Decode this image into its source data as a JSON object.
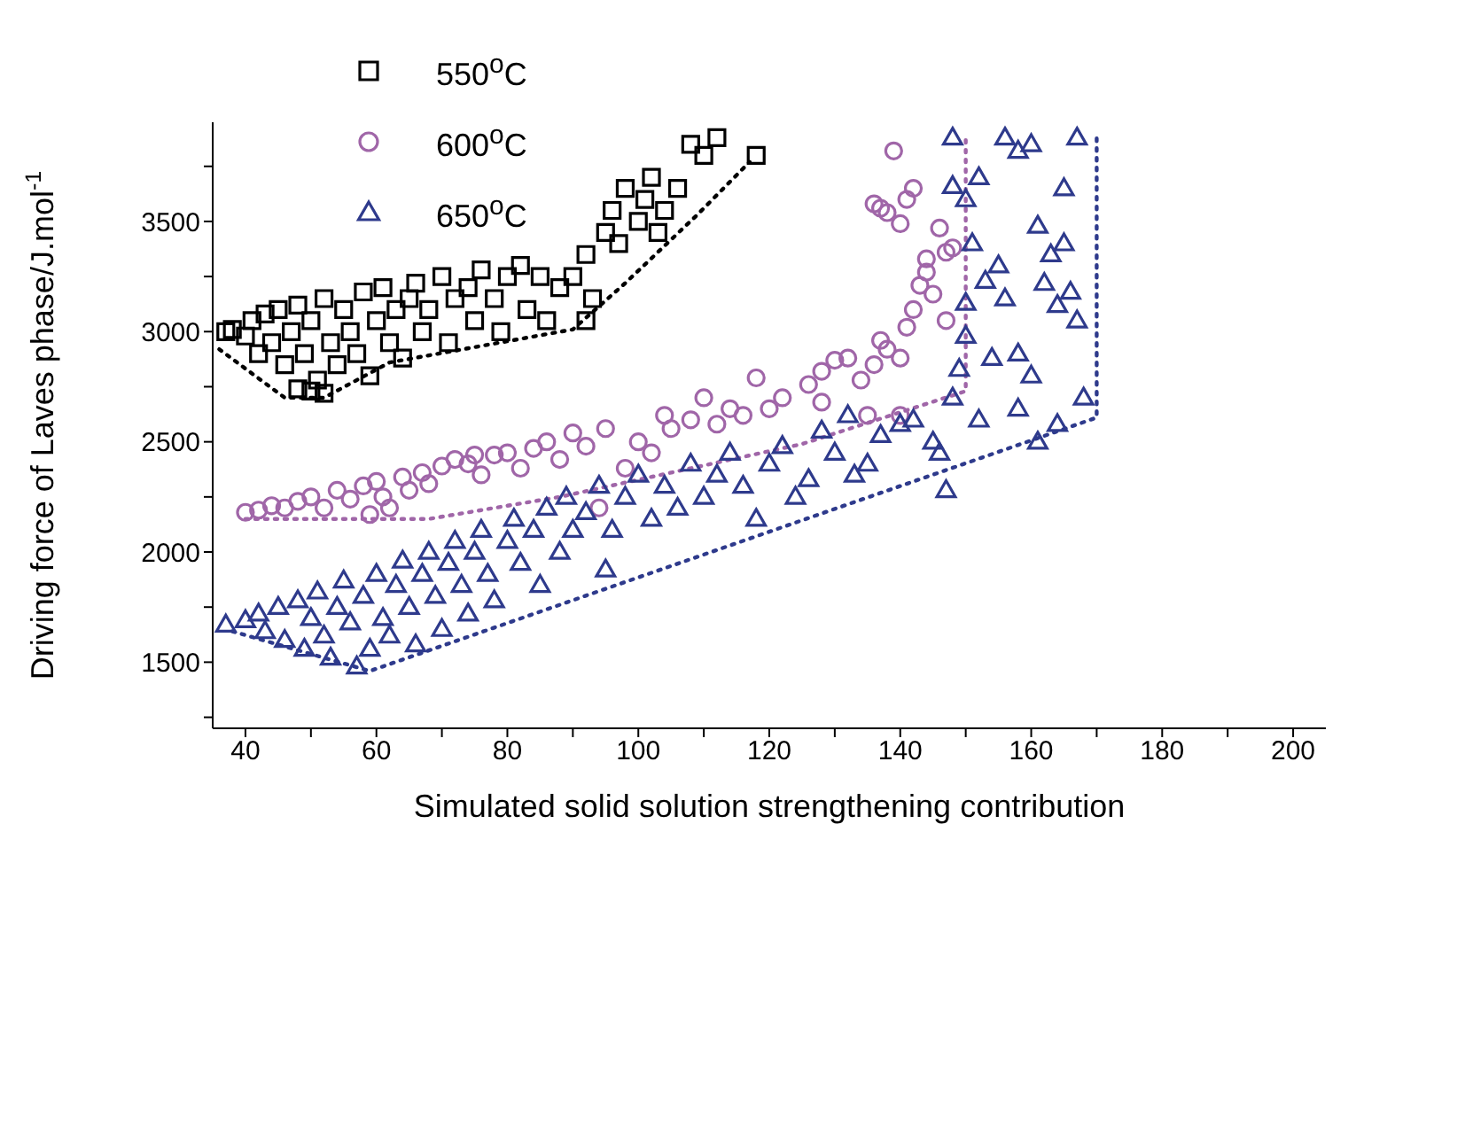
{
  "chart_data": {
    "type": "scatter",
    "xlabel": "Simulated solid solution strengthening contribution",
    "ylabel": "Driving force of Laves phase/J.mol$^{-1}$",
    "xlim": [
      35,
      205
    ],
    "xticks": [
      40,
      {
        "value": 50,
        "label": null
      },
      60,
      {
        "value": 70,
        "label": null
      },
      80,
      {
        "value": 90,
        "label": null
      },
      100,
      {
        "value": 110,
        "label": null
      },
      120,
      {
        "value": 130,
        "label": null
      },
      140,
      {
        "value": 150,
        "label": null
      },
      160,
      {
        "value": 170,
        "label": null
      },
      180,
      {
        "value": 190,
        "label": null
      },
      200
    ],
    "ylim": [
      1200,
      3950
    ],
    "yticks": [
      {
        "value": 1250,
        "label": null
      },
      1500,
      {
        "value": 1750,
        "label": null
      },
      2000,
      {
        "value": 2250,
        "label": null
      },
      2500,
      {
        "value": 2750,
        "label": null
      },
      3000,
      {
        "value": 3250,
        "label": null
      },
      3500,
      {
        "value": 3750,
        "label": null
      }
    ],
    "legend": "top left",
    "grid": false,
    "series": [
      {
        "name": "550$^{o}$C",
        "type": "scatter",
        "marker": "square",
        "color": "#000000",
        "x": [
          37,
          38,
          40,
          41,
          42,
          43,
          44,
          45,
          46,
          47,
          48,
          49,
          50,
          51,
          52,
          53,
          54,
          55,
          56,
          57,
          58,
          59,
          60,
          61,
          62,
          63,
          64,
          65,
          66,
          67,
          68,
          70,
          71,
          72,
          74,
          75,
          76,
          78,
          79,
          80,
          82,
          83,
          85,
          86,
          88,
          90,
          92,
          93,
          95,
          96,
          97,
          98,
          100,
          101,
          102,
          103,
          104,
          106,
          108,
          110,
          112,
          118,
          92,
          50,
          48,
          52
        ],
        "values": [
          3000,
          3010,
          2980,
          3050,
          2900,
          3080,
          2950,
          3100,
          2850,
          3000,
          3120,
          2900,
          3050,
          2780,
          3150,
          2950,
          2850,
          3100,
          3000,
          2900,
          3180,
          2800,
          3050,
          3200,
          2950,
          3100,
          2880,
          3150,
          3220,
          3000,
          3100,
          3250,
          2950,
          3150,
          3200,
          3050,
          3280,
          3150,
          3000,
          3250,
          3300,
          3100,
          3250,
          3050,
          3200,
          3250,
          3350,
          3150,
          3450,
          3550,
          3400,
          3650,
          3500,
          3600,
          3700,
          3450,
          3550,
          3650,
          3850,
          3800,
          3880,
          3800,
          3050,
          2730,
          2740,
          2720
        ]
      },
      {
        "name": "600$^{o}$C",
        "type": "scatter",
        "marker": "circle",
        "color": "#a066a8",
        "x": [
          40,
          42,
          44,
          46,
          48,
          50,
          52,
          54,
          56,
          58,
          59,
          60,
          61,
          62,
          64,
          65,
          67,
          68,
          70,
          72,
          74,
          75,
          76,
          78,
          80,
          82,
          84,
          86,
          88,
          90,
          92,
          94,
          95,
          98,
          100,
          102,
          104,
          105,
          108,
          110,
          112,
          114,
          116,
          118,
          120,
          122,
          126,
          128,
          130,
          132,
          134,
          136,
          137,
          138,
          140,
          141,
          142,
          143,
          144,
          145,
          146,
          147,
          136,
          137,
          138,
          140,
          141,
          142,
          139,
          144,
          148,
          147,
          140,
          135,
          128
        ],
        "values": [
          2180,
          2190,
          2210,
          2200,
          2230,
          2250,
          2200,
          2280,
          2240,
          2300,
          2170,
          2320,
          2250,
          2200,
          2340,
          2280,
          2360,
          2310,
          2390,
          2420,
          2400,
          2440,
          2350,
          2440,
          2450,
          2380,
          2470,
          2500,
          2420,
          2540,
          2480,
          2200,
          2560,
          2380,
          2500,
          2450,
          2620,
          2560,
          2600,
          2700,
          2580,
          2650,
          2620,
          2790,
          2650,
          2700,
          2760,
          2820,
          2870,
          2880,
          2780,
          2850,
          2960,
          2920,
          2880,
          3020,
          3100,
          3210,
          3330,
          3170,
          3470,
          3360,
          3580,
          3560,
          3540,
          3490,
          3600,
          3650,
          3820,
          3270,
          3380,
          3050,
          2620,
          2620,
          2680
        ]
      },
      {
        "name": "650$^{o}$C",
        "type": "scatter",
        "marker": "triangle",
        "color": "#2e3a8c",
        "x": [
          37,
          40,
          42,
          43,
          45,
          46,
          48,
          49,
          50,
          51,
          52,
          53,
          54,
          55,
          56,
          57,
          58,
          59,
          60,
          61,
          62,
          63,
          64,
          65,
          66,
          67,
          68,
          69,
          70,
          71,
          72,
          73,
          74,
          75,
          76,
          77,
          78,
          80,
          81,
          82,
          84,
          85,
          86,
          88,
          89,
          90,
          92,
          94,
          95,
          96,
          98,
          100,
          102,
          104,
          106,
          108,
          110,
          112,
          114,
          116,
          118,
          120,
          122,
          124,
          126,
          128,
          130,
          132,
          133,
          135,
          137,
          140,
          142,
          145,
          146,
          148,
          149,
          150,
          150,
          151,
          152,
          150,
          148,
          153,
          155,
          154,
          156,
          158,
          158,
          160,
          161,
          162,
          163,
          164,
          165,
          166,
          167,
          168,
          164,
          165,
          160,
          158,
          148,
          156,
          167,
          161,
          152,
          147
        ],
        "values": [
          1670,
          1690,
          1720,
          1640,
          1750,
          1600,
          1780,
          1560,
          1700,
          1820,
          1620,
          1520,
          1750,
          1870,
          1680,
          1480,
          1800,
          1560,
          1900,
          1700,
          1620,
          1850,
          1960,
          1750,
          1580,
          1900,
          2000,
          1800,
          1650,
          1950,
          2050,
          1850,
          1720,
          2000,
          2100,
          1900,
          1780,
          2050,
          2150,
          1950,
          2100,
          1850,
          2200,
          2000,
          2250,
          2100,
          2180,
          2300,
          1920,
          2100,
          2250,
          2350,
          2150,
          2300,
          2200,
          2400,
          2250,
          2350,
          2450,
          2300,
          2150,
          2400,
          2480,
          2250,
          2330,
          2550,
          2450,
          2620,
          2350,
          2400,
          2530,
          2580,
          2600,
          2500,
          2450,
          2700,
          2830,
          2980,
          3130,
          3400,
          3700,
          3600,
          3660,
          3230,
          3300,
          2880,
          3150,
          2650,
          2900,
          2800,
          3480,
          3220,
          3350,
          3120,
          3400,
          3180,
          3050,
          2700,
          2580,
          3650,
          3850,
          3820,
          3880,
          3880,
          3880,
          2500,
          2600,
          2280
        ]
      },
      {
        "type": "line",
        "line_style": "dotted",
        "marker": "none",
        "color": "#000000",
        "x": [
          36,
          46,
          52,
          62,
          90,
          98,
          109,
          117
        ],
        "values": [
          2920,
          2700,
          2700,
          2860,
          3010,
          3220,
          3530,
          3770
        ]
      },
      {
        "type": "line",
        "line_style": "dotted",
        "marker": "none",
        "color": "#a066a8",
        "x": [
          40,
          68,
          88,
          125,
          150,
          150
        ],
        "values": [
          2150,
          2150,
          2250,
          2490,
          2730,
          3880
        ]
      },
      {
        "type": "line",
        "line_style": "dotted",
        "marker": "none",
        "color": "#2e3a8c",
        "x": [
          38,
          59,
          170,
          170
        ],
        "values": [
          1640,
          1460,
          2610,
          3880
        ]
      }
    ]
  }
}
